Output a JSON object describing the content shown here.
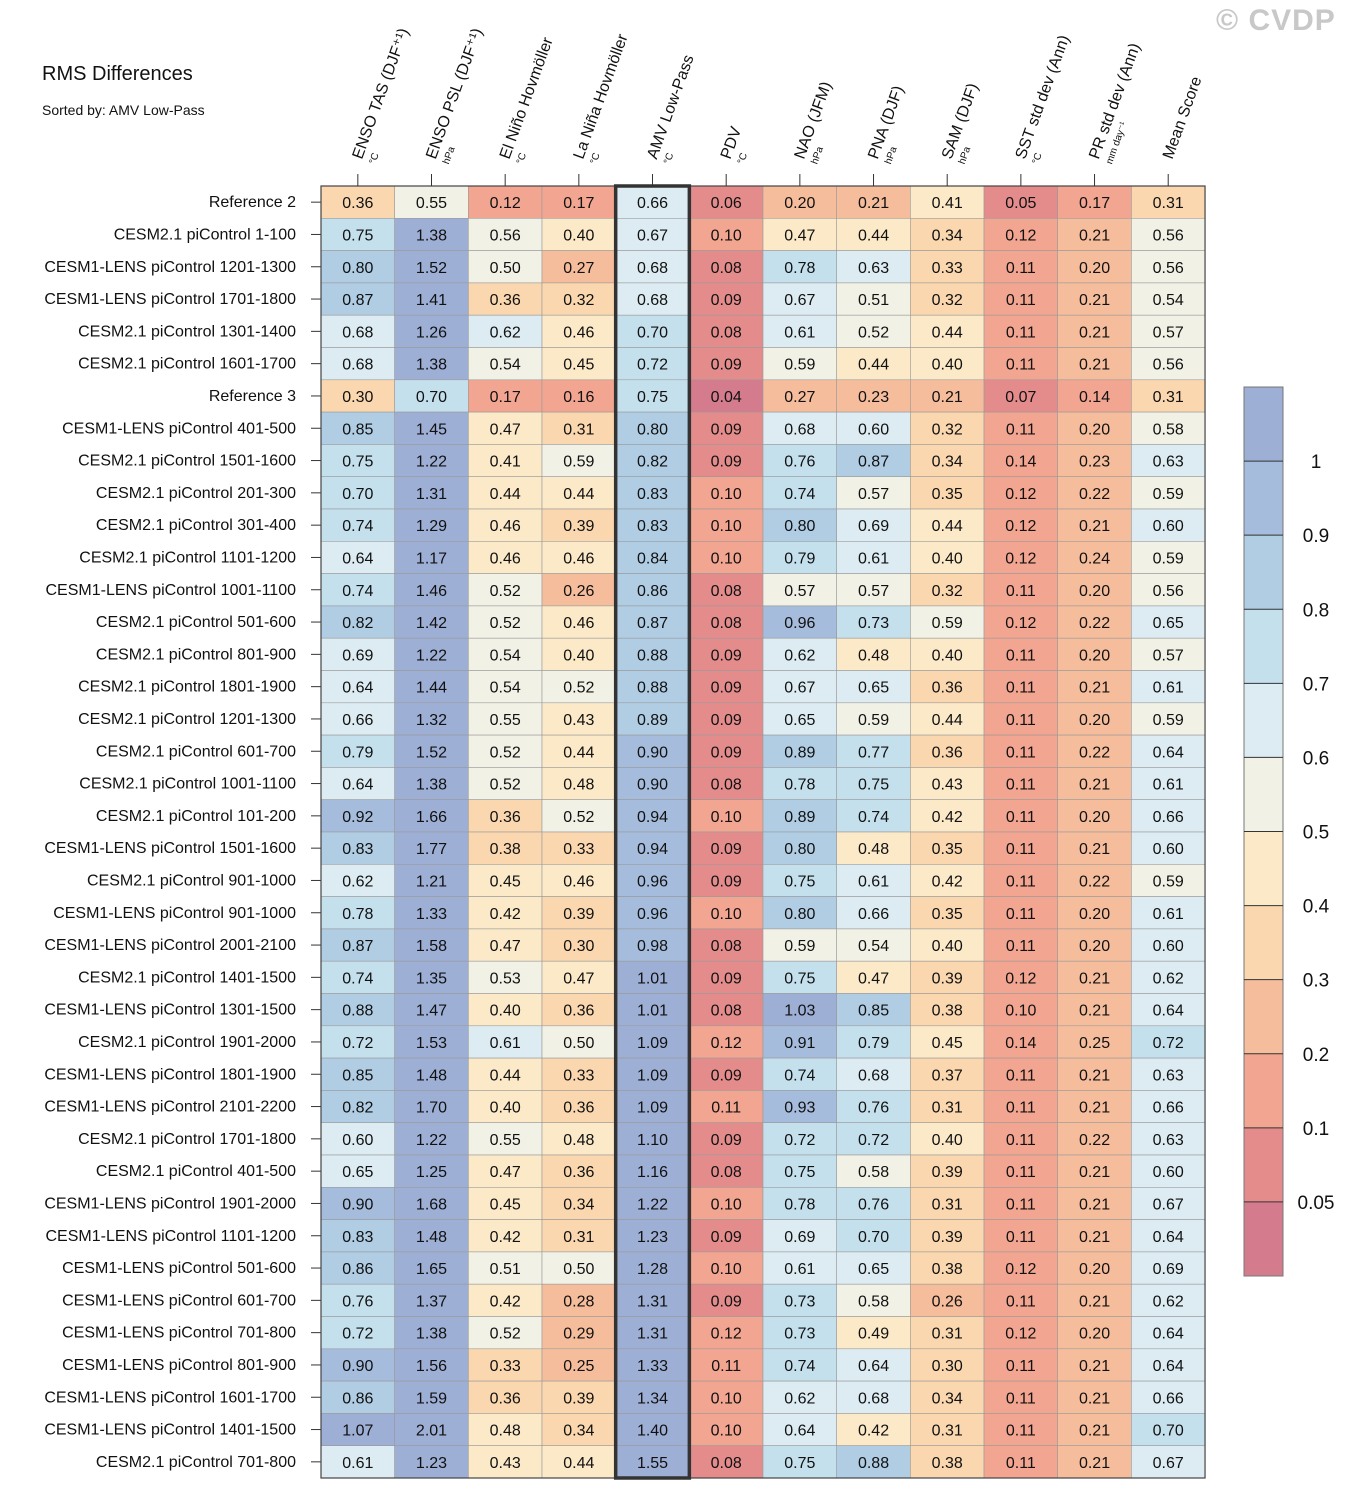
{
  "title": "RMS Differences",
  "subtitle": "Sorted by: AMV Low-Pass",
  "watermark": "© CVDP",
  "chart_data": {
    "type": "heatmap",
    "title": "RMS Differences",
    "sorted_by": "AMV Low-Pass",
    "highlighted_column": "AMV Low-Pass",
    "columns": [
      {
        "name": "ENSO TAS (DJF⁺¹)",
        "unit": "°C"
      },
      {
        "name": "ENSO PSL (DJF⁺¹)",
        "unit": "hPa"
      },
      {
        "name": "El Niño Hovmöller",
        "unit": "°C"
      },
      {
        "name": "La Niña Hovmöller",
        "unit": "°C"
      },
      {
        "name": "AMV Low-Pass",
        "unit": "°C"
      },
      {
        "name": "PDV",
        "unit": "°C"
      },
      {
        "name": "NAO (JFM)",
        "unit": "hPa"
      },
      {
        "name": "PNA (DJF)",
        "unit": "hPa"
      },
      {
        "name": "SAM (DJF)",
        "unit": "hPa"
      },
      {
        "name": "SST std dev (Ann)",
        "unit": "°C"
      },
      {
        "name": "PR std dev (Ann)",
        "unit": "mm day⁻¹"
      },
      {
        "name": "Mean Score",
        "unit": ""
      }
    ],
    "rows": [
      "Reference 2",
      "CESM2.1 piControl 1-100",
      "CESM1-LENS piControl 1201-1300",
      "CESM1-LENS piControl 1701-1800",
      "CESM2.1 piControl 1301-1400",
      "CESM2.1 piControl 1601-1700",
      "Reference 3",
      "CESM1-LENS piControl 401-500",
      "CESM2.1 piControl 1501-1600",
      "CESM2.1 piControl 201-300",
      "CESM2.1 piControl 301-400",
      "CESM2.1 piControl 1101-1200",
      "CESM1-LENS piControl 1001-1100",
      "CESM2.1 piControl 501-600",
      "CESM2.1 piControl 801-900",
      "CESM2.1 piControl 1801-1900",
      "CESM2.1 piControl 1201-1300",
      "CESM2.1 piControl 601-700",
      "CESM2.1 piControl 1001-1100",
      "CESM2.1 piControl 101-200",
      "CESM1-LENS piControl 1501-1600",
      "CESM2.1 piControl 901-1000",
      "CESM1-LENS piControl 901-1000",
      "CESM1-LENS piControl 2001-2100",
      "CESM2.1 piControl 1401-1500",
      "CESM1-LENS piControl 1301-1500",
      "CESM2.1 piControl 1901-2000",
      "CESM1-LENS piControl 1801-1900",
      "CESM1-LENS piControl 2101-2200",
      "CESM2.1 piControl 1701-1800",
      "CESM2.1 piControl 401-500",
      "CESM1-LENS piControl 1901-2000",
      "CESM1-LENS piControl 1101-1200",
      "CESM1-LENS piControl 501-600",
      "CESM1-LENS piControl 601-700",
      "CESM1-LENS piControl 701-800",
      "CESM1-LENS piControl 801-900",
      "CESM1-LENS piControl 1601-1700",
      "CESM1-LENS piControl 1401-1500",
      "CESM2.1 piControl 701-800"
    ],
    "values": [
      [
        0.36,
        0.55,
        0.12,
        0.17,
        0.66,
        0.06,
        0.2,
        0.21,
        0.41,
        0.05,
        0.17,
        0.31
      ],
      [
        0.75,
        1.38,
        0.56,
        0.4,
        0.67,
        0.1,
        0.47,
        0.44,
        0.34,
        0.12,
        0.21,
        0.56
      ],
      [
        0.8,
        1.52,
        0.5,
        0.27,
        0.68,
        0.08,
        0.78,
        0.63,
        0.33,
        0.11,
        0.2,
        0.56
      ],
      [
        0.87,
        1.41,
        0.36,
        0.32,
        0.68,
        0.09,
        0.67,
        0.51,
        0.32,
        0.11,
        0.21,
        0.54
      ],
      [
        0.68,
        1.26,
        0.62,
        0.46,
        0.7,
        0.08,
        0.61,
        0.52,
        0.44,
        0.11,
        0.21,
        0.57
      ],
      [
        0.68,
        1.38,
        0.54,
        0.45,
        0.72,
        0.09,
        0.59,
        0.44,
        0.4,
        0.11,
        0.21,
        0.56
      ],
      [
        0.3,
        0.7,
        0.17,
        0.16,
        0.75,
        0.04,
        0.27,
        0.23,
        0.21,
        0.07,
        0.14,
        0.31
      ],
      [
        0.85,
        1.45,
        0.47,
        0.31,
        0.8,
        0.09,
        0.68,
        0.6,
        0.32,
        0.11,
        0.2,
        0.58
      ],
      [
        0.75,
        1.22,
        0.41,
        0.59,
        0.82,
        0.09,
        0.76,
        0.87,
        0.34,
        0.14,
        0.23,
        0.63
      ],
      [
        0.7,
        1.31,
        0.44,
        0.44,
        0.83,
        0.1,
        0.74,
        0.57,
        0.35,
        0.12,
        0.22,
        0.59
      ],
      [
        0.74,
        1.29,
        0.46,
        0.39,
        0.83,
        0.1,
        0.8,
        0.69,
        0.44,
        0.12,
        0.21,
        0.6
      ],
      [
        0.64,
        1.17,
        0.46,
        0.46,
        0.84,
        0.1,
        0.79,
        0.61,
        0.4,
        0.12,
        0.24,
        0.59
      ],
      [
        0.74,
        1.46,
        0.52,
        0.26,
        0.86,
        0.08,
        0.57,
        0.57,
        0.32,
        0.11,
        0.2,
        0.56
      ],
      [
        0.82,
        1.42,
        0.52,
        0.46,
        0.87,
        0.08,
        0.96,
        0.73,
        0.59,
        0.12,
        0.22,
        0.65
      ],
      [
        0.69,
        1.22,
        0.54,
        0.4,
        0.88,
        0.09,
        0.62,
        0.48,
        0.4,
        0.11,
        0.2,
        0.57
      ],
      [
        0.64,
        1.44,
        0.54,
        0.52,
        0.88,
        0.09,
        0.67,
        0.65,
        0.36,
        0.11,
        0.21,
        0.61
      ],
      [
        0.66,
        1.32,
        0.55,
        0.43,
        0.89,
        0.09,
        0.65,
        0.59,
        0.44,
        0.11,
        0.2,
        0.59
      ],
      [
        0.79,
        1.52,
        0.52,
        0.44,
        0.9,
        0.09,
        0.89,
        0.77,
        0.36,
        0.11,
        0.22,
        0.64
      ],
      [
        0.64,
        1.38,
        0.52,
        0.48,
        0.9,
        0.08,
        0.78,
        0.75,
        0.43,
        0.11,
        0.21,
        0.61
      ],
      [
        0.92,
        1.66,
        0.36,
        0.52,
        0.94,
        0.1,
        0.89,
        0.74,
        0.42,
        0.11,
        0.2,
        0.66
      ],
      [
        0.83,
        1.77,
        0.38,
        0.33,
        0.94,
        0.09,
        0.8,
        0.48,
        0.35,
        0.11,
        0.21,
        0.6
      ],
      [
        0.62,
        1.21,
        0.45,
        0.46,
        0.96,
        0.09,
        0.75,
        0.61,
        0.42,
        0.11,
        0.22,
        0.59
      ],
      [
        0.78,
        1.33,
        0.42,
        0.39,
        0.96,
        0.1,
        0.8,
        0.66,
        0.35,
        0.11,
        0.2,
        0.61
      ],
      [
        0.87,
        1.58,
        0.47,
        0.3,
        0.98,
        0.08,
        0.59,
        0.54,
        0.4,
        0.11,
        0.2,
        0.6
      ],
      [
        0.74,
        1.35,
        0.53,
        0.47,
        1.01,
        0.09,
        0.75,
        0.47,
        0.39,
        0.12,
        0.21,
        0.62
      ],
      [
        0.88,
        1.47,
        0.4,
        0.36,
        1.01,
        0.08,
        1.03,
        0.85,
        0.38,
        0.1,
        0.21,
        0.64
      ],
      [
        0.72,
        1.53,
        0.61,
        0.5,
        1.09,
        0.12,
        0.91,
        0.79,
        0.45,
        0.14,
        0.25,
        0.72
      ],
      [
        0.85,
        1.48,
        0.44,
        0.33,
        1.09,
        0.09,
        0.74,
        0.68,
        0.37,
        0.11,
        0.21,
        0.63
      ],
      [
        0.82,
        1.7,
        0.4,
        0.36,
        1.09,
        0.11,
        0.93,
        0.76,
        0.31,
        0.11,
        0.21,
        0.66
      ],
      [
        0.6,
        1.22,
        0.55,
        0.48,
        1.1,
        0.09,
        0.72,
        0.72,
        0.4,
        0.11,
        0.22,
        0.63
      ],
      [
        0.65,
        1.25,
        0.47,
        0.36,
        1.16,
        0.08,
        0.75,
        0.58,
        0.39,
        0.11,
        0.21,
        0.6
      ],
      [
        0.9,
        1.68,
        0.45,
        0.34,
        1.22,
        0.1,
        0.78,
        0.76,
        0.31,
        0.11,
        0.21,
        0.67
      ],
      [
        0.83,
        1.48,
        0.42,
        0.31,
        1.23,
        0.09,
        0.69,
        0.7,
        0.39,
        0.11,
        0.21,
        0.64
      ],
      [
        0.86,
        1.65,
        0.51,
        0.5,
        1.28,
        0.1,
        0.61,
        0.65,
        0.38,
        0.12,
        0.2,
        0.69
      ],
      [
        0.76,
        1.37,
        0.42,
        0.28,
        1.31,
        0.09,
        0.73,
        0.58,
        0.26,
        0.11,
        0.21,
        0.62
      ],
      [
        0.72,
        1.38,
        0.52,
        0.29,
        1.31,
        0.12,
        0.73,
        0.49,
        0.31,
        0.12,
        0.2,
        0.64
      ],
      [
        0.9,
        1.56,
        0.33,
        0.25,
        1.33,
        0.11,
        0.74,
        0.64,
        0.3,
        0.11,
        0.21,
        0.64
      ],
      [
        0.86,
        1.59,
        0.36,
        0.39,
        1.34,
        0.1,
        0.62,
        0.68,
        0.34,
        0.11,
        0.21,
        0.66
      ],
      [
        1.07,
        2.01,
        0.48,
        0.34,
        1.4,
        0.1,
        0.64,
        0.42,
        0.31,
        0.11,
        0.21,
        0.7
      ],
      [
        0.61,
        1.23,
        0.43,
        0.44,
        1.55,
        0.08,
        0.75,
        0.88,
        0.38,
        0.11,
        0.21,
        0.67
      ]
    ],
    "colorbar": {
      "levels": [
        0.05,
        0.1,
        0.2,
        0.3,
        0.4,
        0.5,
        0.6,
        0.7,
        0.8,
        0.9,
        1
      ],
      "tick_labels": [
        "0.05",
        "0.1",
        "0.2",
        "0.3",
        "0.4",
        "0.5",
        "0.6",
        "0.7",
        "0.8",
        "0.9",
        "1"
      ],
      "colors": [
        "#d47c8d",
        "#e48c8c",
        "#f2a590",
        "#f6bd9c",
        "#fad7ae",
        "#fbe9c8",
        "#f2f1e6",
        "#dcecf2",
        "#c5e0ed",
        "#b0cde4",
        "#a5bcdc",
        "#9eafd6"
      ]
    }
  }
}
